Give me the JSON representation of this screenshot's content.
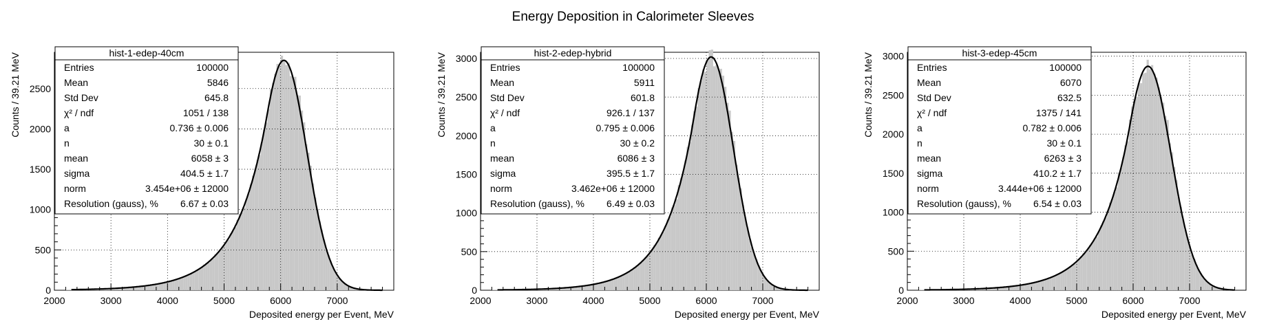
{
  "page": {
    "title": "Energy Deposition in Calorimeter Sleeves"
  },
  "chart_data": [
    {
      "type": "bar",
      "hist_name": "hist-1-edep-40cm",
      "xlabel": "Deposited energy per Event, MeV",
      "ylabel": "Counts / 39.21 MeV",
      "xlim": [
        2000,
        8000
      ],
      "ylim": [
        0,
        2950
      ],
      "xticks": [
        2000,
        3000,
        4000,
        5000,
        6000,
        7000
      ],
      "yticks": [
        0,
        500,
        1000,
        1500,
        2000,
        2500
      ],
      "grid": true,
      "bin_width": 39.21,
      "stats": [
        {
          "label": "Entries",
          "value": "100000"
        },
        {
          "label": "Mean",
          "value": "5846"
        },
        {
          "label": "Std Dev",
          "value": "645.8"
        },
        {
          "label": "χ² / ndf",
          "value": "1051 / 138"
        },
        {
          "label": "a",
          "value": "0.736 ± 0.006"
        },
        {
          "label": "n",
          "value": "30 ± 0.1"
        },
        {
          "label": "mean",
          "value": "6058 ± 3"
        },
        {
          "label": "sigma",
          "value": "404.5 ± 1.7"
        },
        {
          "label": "norm",
          "value": "3.454e+06 ± 12000"
        },
        {
          "label": "Resolution (gauss), %",
          "value": "6.67 ± 0.03"
        }
      ],
      "fit": {
        "function": "Crystal Ball",
        "a": 0.736,
        "n": 30,
        "mean": 6058,
        "sigma": 404.5,
        "peak": 2850
      }
    },
    {
      "type": "bar",
      "hist_name": "hist-2-edep-hybrid",
      "xlabel": "Deposited energy per Event, MeV",
      "ylabel": "Counts / 39.21 MeV",
      "xlim": [
        2000,
        8000
      ],
      "ylim": [
        0,
        3080
      ],
      "xticks": [
        2000,
        3000,
        4000,
        5000,
        6000,
        7000
      ],
      "yticks": [
        0,
        500,
        1000,
        1500,
        2000,
        2500,
        3000
      ],
      "grid": true,
      "bin_width": 39.21,
      "stats": [
        {
          "label": "Entries",
          "value": "100000"
        },
        {
          "label": "Mean",
          "value": "5911"
        },
        {
          "label": "Std Dev",
          "value": "601.8"
        },
        {
          "label": "χ² / ndf",
          "value": "926.1 / 137"
        },
        {
          "label": "a",
          "value": "0.795 ± 0.006"
        },
        {
          "label": "n",
          "value": "30 ± 0.2"
        },
        {
          "label": "mean",
          "value": "6086 ± 3"
        },
        {
          "label": "sigma",
          "value": "395.5 ± 1.7"
        },
        {
          "label": "norm",
          "value": "3.462e+06 ± 12000"
        },
        {
          "label": "Resolution (gauss), %",
          "value": "6.49 ± 0.03"
        }
      ],
      "fit": {
        "function": "Crystal Ball",
        "a": 0.795,
        "n": 30,
        "mean": 6086,
        "sigma": 395.5,
        "peak": 3020
      }
    },
    {
      "type": "bar",
      "hist_name": "hist-3-edep-45cm",
      "xlabel": "Deposited energy per Event, MeV",
      "ylabel": "Counts / 39.21 MeV",
      "xlim": [
        2000,
        8000
      ],
      "ylim": [
        0,
        3050
      ],
      "xticks": [
        2000,
        3000,
        4000,
        5000,
        6000,
        7000
      ],
      "yticks": [
        0,
        500,
        1000,
        1500,
        2000,
        2500,
        3000
      ],
      "grid": true,
      "bin_width": 39.21,
      "stats": [
        {
          "label": "Entries",
          "value": "100000"
        },
        {
          "label": "Mean",
          "value": "6070"
        },
        {
          "label": "Std Dev",
          "value": "632.5"
        },
        {
          "label": "χ² / ndf",
          "value": "1375 / 141"
        },
        {
          "label": "a",
          "value": "0.782 ± 0.006"
        },
        {
          "label": "n",
          "value": "30 ± 0.1"
        },
        {
          "label": "mean",
          "value": "6263 ± 3"
        },
        {
          "label": "sigma",
          "value": "410.2 ± 1.7"
        },
        {
          "label": "norm",
          "value": "3.444e+06 ± 12000"
        },
        {
          "label": "Resolution (gauss), %",
          "value": "6.54 ± 0.03"
        }
      ],
      "fit": {
        "function": "Crystal Ball",
        "a": 0.782,
        "n": 30,
        "mean": 6263,
        "sigma": 410.2,
        "peak": 2870
      }
    }
  ]
}
